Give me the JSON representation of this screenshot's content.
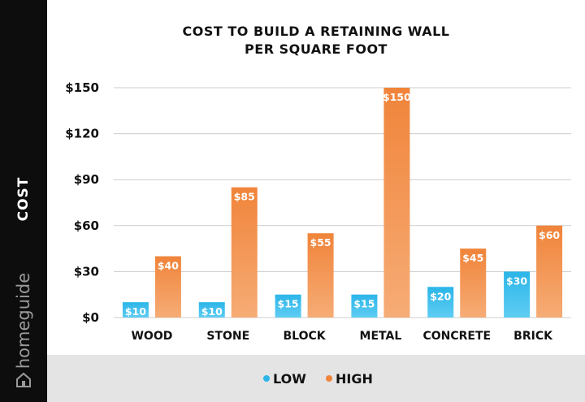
{
  "brand": "homeguide",
  "chart_data": {
    "type": "bar",
    "title": [
      "COST TO BUILD A RETAINING WALL",
      "PER SQUARE FOOT"
    ],
    "ylabel": "COST",
    "xlabel": "",
    "categories": [
      "WOOD",
      "STONE",
      "BLOCK",
      "METAL",
      "CONCRETE",
      "BRICK"
    ],
    "series": [
      {
        "name": "LOW",
        "values": [
          10,
          10,
          15,
          15,
          20,
          30
        ],
        "labels": [
          "$10",
          "$10",
          "$15",
          "$15",
          "$20",
          "$30"
        ],
        "color": "#2bb5e8"
      },
      {
        "name": "HIGH",
        "values": [
          40,
          85,
          55,
          150,
          45,
          60
        ],
        "labels": [
          "$40",
          "$85",
          "$55",
          "$150",
          "$45",
          "$60"
        ],
        "color": "#f0843a"
      }
    ],
    "ylim": [
      0,
      150
    ],
    "yticks": [
      0,
      30,
      60,
      90,
      120,
      150
    ],
    "ytick_labels": [
      "$0",
      "$30",
      "$60",
      "$90",
      "$120",
      "$150"
    ],
    "grid": true,
    "legend_position": "bottom"
  }
}
